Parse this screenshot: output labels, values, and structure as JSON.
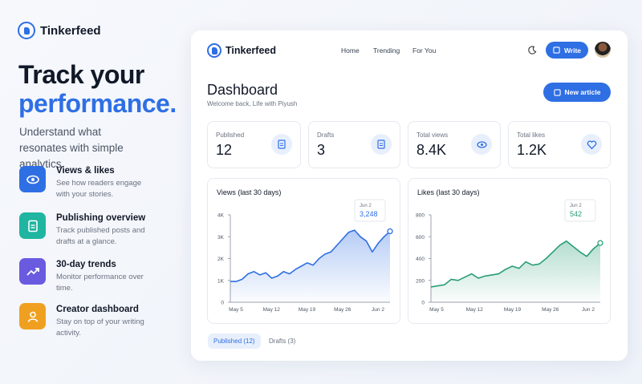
{
  "brand": "Tinkerfeed",
  "hero": {
    "title_line1": "Track your",
    "title_line2": "performance.",
    "subtitle": "Understand what resonates with simple analytics."
  },
  "features": [
    {
      "title": "Views & likes",
      "text": "See how readers engage with your stories."
    },
    {
      "title": "Publishing overview",
      "text": "Track published posts and drafts at a glance."
    },
    {
      "title": "30-day trends",
      "text": "Monitor performance over time."
    },
    {
      "title": "Creator dashboard",
      "text": "Stay on top of your writing activity."
    }
  ],
  "app": {
    "brand": "Tinkerfeed",
    "nav": [
      "Home",
      "Trending",
      "For You"
    ],
    "write": "Write",
    "heading": "Dashboard",
    "welcome": "Welcome back, Life with Piyush",
    "new_article": "New article",
    "stats": [
      {
        "label": "Published",
        "value": "12"
      },
      {
        "label": "Drafts",
        "value": "3"
      },
      {
        "label": "Total views",
        "value": "8.4K"
      },
      {
        "label": "Total likes",
        "value": "1.2K"
      }
    ],
    "charts": [
      {
        "title": "Views (last 30 days)",
        "type": "area",
        "color": "#2f6fe4",
        "x_labels": [
          "May 5",
          "May 12",
          "May 19",
          "May 26",
          "Jun 2"
        ],
        "ylim": [
          0,
          4000
        ],
        "yticks": [
          {
            "value": 0,
            "label": "0"
          },
          {
            "value": 1000,
            "label": "1K"
          },
          {
            "value": 2000,
            "label": "2K"
          },
          {
            "value": 3000,
            "label": "3K"
          },
          {
            "value": 4000,
            "label": "4K"
          }
        ],
        "values": [
          950,
          950,
          1050,
          1300,
          1400,
          1250,
          1350,
          1100,
          1200,
          1400,
          1300,
          1500,
          1650,
          1800,
          1700,
          2000,
          2200,
          2300,
          2600,
          2900,
          3200,
          3300,
          3000,
          2800,
          2300,
          2700,
          3000,
          3248
        ],
        "tooltip": {
          "date": "Jun 2",
          "value": "3,248"
        }
      },
      {
        "title": "Likes (last 30 days)",
        "type": "area",
        "color": "#2a9d78",
        "x_labels": [
          "May 5",
          "May 12",
          "May 19",
          "May 26",
          "Jun 2"
        ],
        "ylim": [
          0,
          800
        ],
        "yticks": [
          0,
          200,
          400,
          600,
          800
        ],
        "values": [
          140,
          150,
          160,
          210,
          200,
          230,
          260,
          220,
          240,
          250,
          260,
          300,
          330,
          310,
          370,
          340,
          350,
          400,
          460,
          520,
          560,
          510,
          460,
          420,
          490,
          542
        ],
        "tooltip": {
          "date": "Jun 2",
          "value": "542"
        }
      }
    ],
    "tabs": [
      "Published (12)",
      "Drafts (3)"
    ]
  }
}
